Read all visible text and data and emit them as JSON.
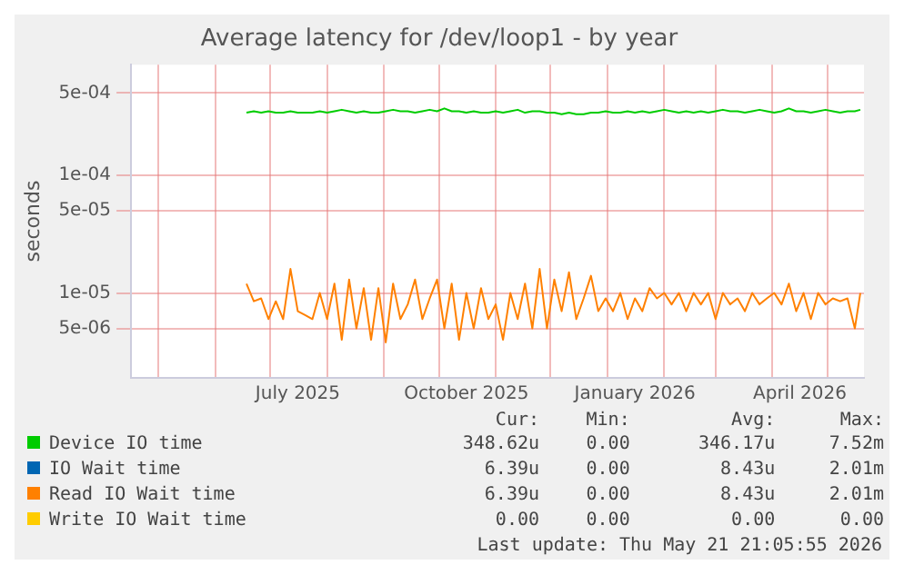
{
  "chart_data": {
    "type": "line",
    "title": "Average latency for /dev/loop1 - by year",
    "ylabel": "seconds",
    "log": "y",
    "grid": true,
    "legend": "bottom",
    "marker": "none",
    "line_style": "solid",
    "xlim": [
      "2025-04-16",
      "2026-05-21"
    ],
    "ylim": [
      1.9e-06,
      0.00087
    ],
    "xticks": [
      {
        "value": "2025-05-01",
        "label": null
      },
      {
        "value": "2025-06-01",
        "label": null
      },
      {
        "value": "2025-07-01",
        "label": null
      },
      {
        "value": "2025-07-16",
        "label": "July 2025"
      },
      {
        "value": "2025-08-01",
        "label": null
      },
      {
        "value": "2025-09-01",
        "label": null
      },
      {
        "value": "2025-10-01",
        "label": null
      },
      {
        "value": "2025-10-16",
        "label": "October 2025"
      },
      {
        "value": "2025-11-01",
        "label": null
      },
      {
        "value": "2025-12-01",
        "label": null
      },
      {
        "value": "2026-01-01",
        "label": null
      },
      {
        "value": "2026-01-16",
        "label": "January 2026"
      },
      {
        "value": "2026-02-01",
        "label": null
      },
      {
        "value": "2026-03-01",
        "label": null
      },
      {
        "value": "2026-04-01",
        "label": null
      },
      {
        "value": "2026-04-16",
        "label": "April 2026"
      },
      {
        "value": "2026-05-01",
        "label": null
      }
    ],
    "yticks": [
      {
        "value": 0.0005,
        "label": "5e-04"
      },
      {
        "value": 0.0001,
        "label": "1e-04"
      },
      {
        "value": 5e-05,
        "label": "5e-05"
      },
      {
        "value": 1e-05,
        "label": "1e-05"
      },
      {
        "value": 5e-06,
        "label": "5e-06"
      }
    ],
    "x": [
      "2025-06-18",
      "2025-06-22",
      "2025-06-26",
      "2025-06-30",
      "2025-07-04",
      "2025-07-08",
      "2025-07-12",
      "2025-07-16",
      "2025-07-20",
      "2025-07-24",
      "2025-07-28",
      "2025-08-01",
      "2025-08-05",
      "2025-08-09",
      "2025-08-13",
      "2025-08-17",
      "2025-08-21",
      "2025-08-25",
      "2025-08-29",
      "2025-09-02",
      "2025-09-06",
      "2025-09-10",
      "2025-09-14",
      "2025-09-18",
      "2025-09-22",
      "2025-09-26",
      "2025-09-30",
      "2025-10-04",
      "2025-10-08",
      "2025-10-12",
      "2025-10-16",
      "2025-10-20",
      "2025-10-24",
      "2025-10-28",
      "2025-11-01",
      "2025-11-05",
      "2025-11-09",
      "2025-11-13",
      "2025-11-17",
      "2025-11-21",
      "2025-11-25",
      "2025-11-29",
      "2025-12-03",
      "2025-12-07",
      "2025-12-11",
      "2025-12-15",
      "2025-12-19",
      "2025-12-23",
      "2025-12-27",
      "2025-12-31",
      "2026-01-04",
      "2026-01-08",
      "2026-01-12",
      "2026-01-16",
      "2026-01-20",
      "2026-01-24",
      "2026-01-28",
      "2026-02-01",
      "2026-02-05",
      "2026-02-09",
      "2026-02-13",
      "2026-02-17",
      "2026-02-21",
      "2026-02-25",
      "2026-03-01",
      "2026-03-05",
      "2026-03-09",
      "2026-03-13",
      "2026-03-17",
      "2026-03-21",
      "2026-03-25",
      "2026-03-29",
      "2026-04-02",
      "2026-04-06",
      "2026-04-10",
      "2026-04-14",
      "2026-04-18",
      "2026-04-22",
      "2026-04-26",
      "2026-04-30",
      "2026-05-04",
      "2026-05-08",
      "2026-05-12",
      "2026-05-16",
      "2026-05-19"
    ],
    "series": [
      {
        "name": "Device IO time",
        "color": "#00cc00",
        "values": [
          0.00034,
          0.00035,
          0.00034,
          0.00035,
          0.00034,
          0.00034,
          0.00035,
          0.00034,
          0.00034,
          0.00034,
          0.00035,
          0.00034,
          0.00035,
          0.00036,
          0.00035,
          0.00034,
          0.00035,
          0.00034,
          0.00034,
          0.00035,
          0.00036,
          0.00035,
          0.00035,
          0.00034,
          0.00035,
          0.00036,
          0.00035,
          0.00037,
          0.00035,
          0.00035,
          0.00034,
          0.00035,
          0.00034,
          0.00034,
          0.00035,
          0.00034,
          0.00035,
          0.00036,
          0.00034,
          0.00035,
          0.00035,
          0.00034,
          0.00034,
          0.00033,
          0.00034,
          0.00033,
          0.00033,
          0.00034,
          0.00034,
          0.00035,
          0.00034,
          0.00034,
          0.00035,
          0.00034,
          0.00035,
          0.00034,
          0.00035,
          0.00036,
          0.00035,
          0.00034,
          0.00035,
          0.00034,
          0.00035,
          0.00034,
          0.00035,
          0.00036,
          0.00035,
          0.00035,
          0.00034,
          0.00035,
          0.00036,
          0.00035,
          0.00034,
          0.00035,
          0.00037,
          0.00035,
          0.00035,
          0.00034,
          0.00035,
          0.00036,
          0.00035,
          0.00034,
          0.00035,
          0.00035,
          0.00036
        ]
      },
      {
        "name": "IO Wait time",
        "color": "#0066b3",
        "values": [
          null,
          null,
          null,
          null,
          null,
          null,
          null,
          null,
          null,
          null,
          null,
          null,
          null,
          null,
          null,
          null,
          null,
          null,
          null,
          null,
          null,
          null,
          null,
          null,
          null,
          null,
          null,
          null,
          null,
          null,
          null,
          null,
          null,
          null,
          null,
          null,
          null,
          null,
          null,
          null,
          null,
          null,
          null,
          null,
          null,
          null,
          null,
          null,
          null,
          null,
          null,
          null,
          null,
          null,
          null,
          null,
          null,
          null,
          null,
          null,
          null,
          null,
          null,
          null,
          null,
          null,
          null,
          null,
          null,
          null,
          null,
          null,
          null,
          null,
          null,
          null,
          null,
          null,
          null,
          null,
          null,
          null,
          null,
          null,
          null
        ]
      },
      {
        "name": "Read IO Wait time",
        "color": "#ff8000",
        "values": [
          1.2e-05,
          8.5e-06,
          9e-06,
          6e-06,
          8.5e-06,
          6e-06,
          1.6e-05,
          7e-06,
          6.5e-06,
          6e-06,
          1e-05,
          6e-06,
          1.2e-05,
          4e-06,
          1.3e-05,
          5e-06,
          1.1e-05,
          4e-06,
          1.1e-05,
          3.8e-06,
          1.2e-05,
          6e-06,
          8e-06,
          1.3e-05,
          6e-06,
          9e-06,
          1.3e-05,
          5e-06,
          1.2e-05,
          4e-06,
          1e-05,
          5e-06,
          1.1e-05,
          6e-06,
          8e-06,
          4e-06,
          1e-05,
          6e-06,
          1.2e-05,
          5e-06,
          1.6e-05,
          5e-06,
          1.3e-05,
          7e-06,
          1.5e-05,
          6e-06,
          9e-06,
          1.4e-05,
          7e-06,
          9e-06,
          7e-06,
          1e-05,
          6e-06,
          9e-06,
          7e-06,
          1.1e-05,
          9e-06,
          1e-05,
          8e-06,
          1e-05,
          7e-06,
          1e-05,
          8e-06,
          1e-05,
          6e-06,
          1e-05,
          8e-06,
          9e-06,
          7e-06,
          1e-05,
          8e-06,
          9e-06,
          1e-05,
          8e-06,
          1.2e-05,
          7e-06,
          1e-05,
          6e-06,
          1e-05,
          8e-06,
          9e-06,
          8.5e-06,
          9e-06,
          5e-06,
          1e-05
        ]
      },
      {
        "name": "Write IO Wait time",
        "color": "#ffcc00",
        "values": [
          null,
          null,
          null,
          null,
          null,
          null,
          null,
          null,
          null,
          null,
          null,
          null,
          null,
          null,
          null,
          null,
          null,
          null,
          null,
          null,
          null,
          null,
          null,
          null,
          null,
          null,
          null,
          null,
          null,
          null,
          null,
          null,
          null,
          null,
          null,
          null,
          null,
          null,
          null,
          null,
          null,
          null,
          null,
          null,
          null,
          null,
          null,
          null,
          null,
          null,
          null,
          null,
          null,
          null,
          null,
          null,
          null,
          null,
          null,
          null,
          null,
          null,
          null,
          null,
          null,
          null,
          null,
          null,
          null,
          null,
          null,
          null,
          null,
          null,
          null,
          null,
          null,
          null,
          null,
          null,
          null,
          null,
          null,
          null,
          null
        ]
      }
    ],
    "annotations": [
      "Cur:",
      "Min:",
      "Avg:",
      "Max:",
      "348.62u",
      "0.00",
      "346.17u",
      "7.52m",
      "6.39u",
      "0.00",
      "8.43u",
      "2.01m",
      "6.39u",
      "0.00",
      "8.43u",
      "2.01m",
      "0.00",
      "0.00",
      "0.00",
      "0.00",
      "Last update: Thu May 21 21:05:55 2026"
    ]
  }
}
